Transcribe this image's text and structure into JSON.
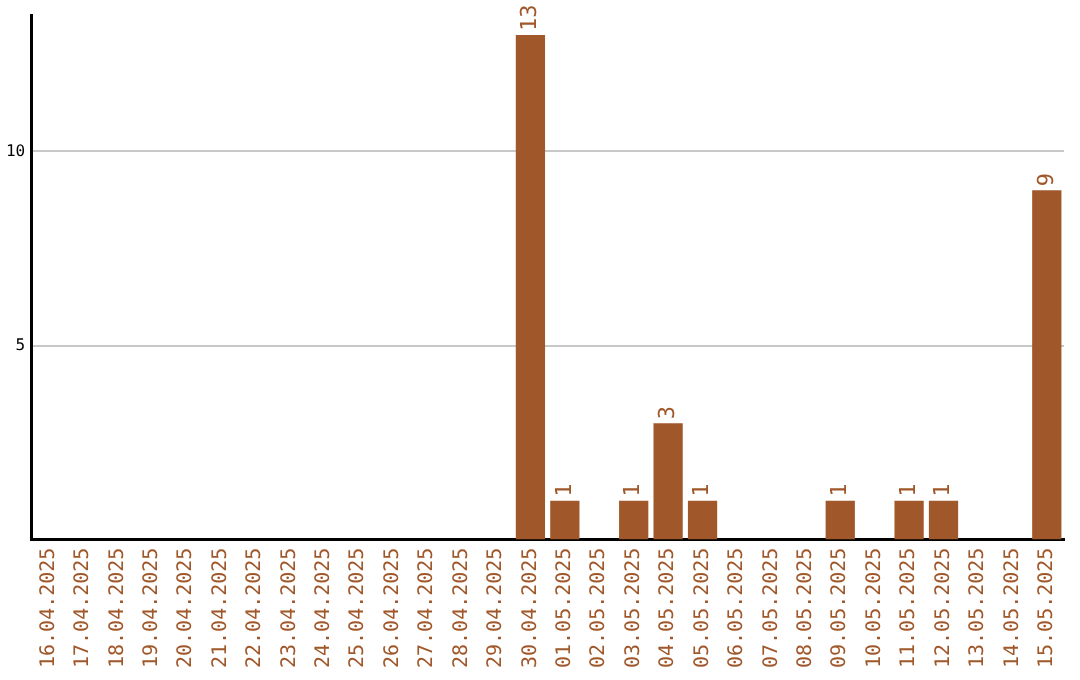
{
  "chart_data": {
    "type": "bar",
    "categories": [
      "16.04.2025",
      "17.04.2025",
      "18.04.2025",
      "19.04.2025",
      "20.04.2025",
      "21.04.2025",
      "22.04.2025",
      "23.04.2025",
      "24.04.2025",
      "25.04.2025",
      "26.04.2025",
      "27.04.2025",
      "28.04.2025",
      "29.04.2025",
      "30.04.2025",
      "01.05.2025",
      "02.05.2025",
      "03.05.2025",
      "04.05.2025",
      "05.05.2025",
      "06.05.2025",
      "07.05.2025",
      "08.05.2025",
      "09.05.2025",
      "10.05.2025",
      "11.05.2025",
      "12.05.2025",
      "13.05.2025",
      "14.05.2025",
      "15.05.2025"
    ],
    "values": [
      0,
      0,
      0,
      0,
      0,
      0,
      0,
      0,
      0,
      0,
      0,
      0,
      0,
      0,
      13,
      1,
      0,
      1,
      3,
      1,
      0,
      0,
      0,
      1,
      0,
      1,
      1,
      0,
      0,
      9
    ],
    "value_labels": [
      null,
      null,
      null,
      null,
      null,
      null,
      null,
      null,
      null,
      null,
      null,
      null,
      null,
      null,
      "13",
      "1",
      null,
      "1",
      "3",
      "1",
      null,
      null,
      null,
      "1",
      null,
      "1",
      "1",
      null,
      null,
      "9"
    ],
    "color": "#a0572a",
    "ylim": [
      0,
      13.5
    ],
    "yticks": [
      5,
      10
    ],
    "grid": "y"
  }
}
